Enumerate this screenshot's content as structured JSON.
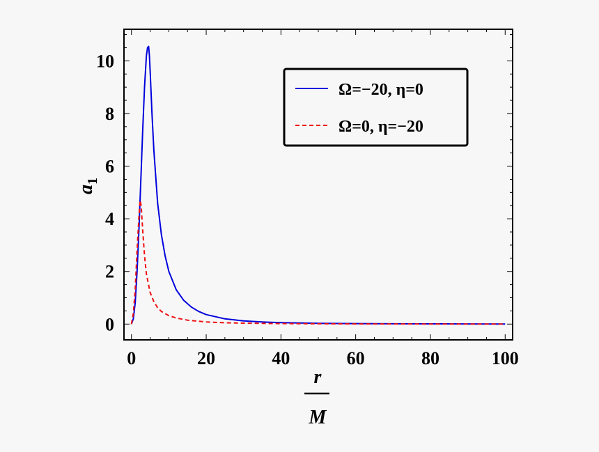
{
  "chart_data": {
    "type": "line",
    "xlabel_top": "r",
    "xlabel_bottom": "M",
    "ylabel": "a",
    "ylabel_sub": "1",
    "xlim": [
      -2,
      102
    ],
    "ylim": [
      -0.6,
      11.2
    ],
    "xticks": [
      0,
      20,
      40,
      60,
      80,
      100
    ],
    "yticks": [
      0,
      2,
      4,
      6,
      8,
      10
    ],
    "grid": false,
    "legend_position": "top-right",
    "series": [
      {
        "name": "Ω=−20, η=0",
        "color": "#0000dd",
        "dash": "solid",
        "x": [
          0,
          0.5,
          1,
          1.5,
          2,
          2.5,
          3,
          3.5,
          4,
          4.3,
          4.6,
          4.8,
          5,
          5.5,
          6,
          7,
          8,
          9,
          10,
          12,
          14,
          16,
          18,
          20,
          25,
          30,
          35,
          40,
          50,
          60,
          70,
          80,
          90,
          100
        ],
        "y": [
          0,
          0.2,
          0.8,
          2.0,
          3.6,
          5.4,
          7.3,
          9.0,
          10.2,
          10.5,
          10.55,
          10.2,
          9.6,
          8.0,
          6.6,
          4.6,
          3.4,
          2.6,
          2.0,
          1.3,
          0.9,
          0.65,
          0.48,
          0.36,
          0.2,
          0.12,
          0.08,
          0.055,
          0.03,
          0.018,
          0.012,
          0.008,
          0.006,
          0.004
        ]
      },
      {
        "name": "Ω=0, η=−20",
        "color": "#ee1111",
        "dash": "dashed",
        "x": [
          0,
          0.5,
          1,
          1.5,
          2,
          2.3,
          2.6,
          3,
          3.5,
          4,
          5,
          6,
          7,
          8,
          10,
          12,
          15,
          20,
          25,
          30,
          40,
          50,
          60,
          80,
          100
        ],
        "y": [
          0,
          0.4,
          1.3,
          2.8,
          4.1,
          4.7,
          4.5,
          3.6,
          2.6,
          1.9,
          1.2,
          0.85,
          0.62,
          0.48,
          0.32,
          0.23,
          0.15,
          0.08,
          0.05,
          0.035,
          0.018,
          0.01,
          0.007,
          0.004,
          0.002
        ]
      }
    ]
  }
}
